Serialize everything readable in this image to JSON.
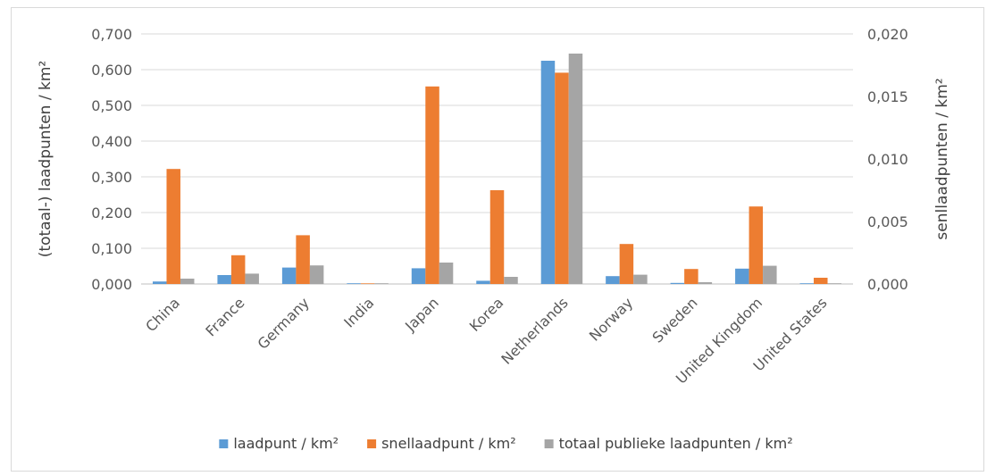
{
  "chart_data": {
    "type": "bar",
    "categories": [
      "China",
      "France",
      "Germany",
      "India",
      "Japan",
      "Korea",
      "Netherlands",
      "Norway",
      "Sweden",
      "United Kingdom",
      "United States"
    ],
    "series": [
      {
        "name": "laadpunt / km²",
        "axis": "left",
        "color": "#5b9bd5",
        "values": [
          0.007,
          0.025,
          0.046,
          0.002,
          0.044,
          0.009,
          0.625,
          0.022,
          0.003,
          0.043,
          0.002
        ]
      },
      {
        "name": "snellaadpunt / km²",
        "axis": "right",
        "color": "#ed7d31",
        "values": [
          0.0092,
          0.0023,
          0.0039,
          5e-05,
          0.0158,
          0.0075,
          0.0169,
          0.0032,
          0.0012,
          0.0062,
          0.0005
        ]
      },
      {
        "name": "totaal publieke laadpunten / km²",
        "axis": "left",
        "color": "#a5a5a5",
        "values": [
          0.015,
          0.029,
          0.052,
          0.002,
          0.06,
          0.02,
          0.645,
          0.026,
          0.005,
          0.051,
          0.002
        ]
      }
    ],
    "ylabel": "(totaal-) laadpunten / km²",
    "y2label": "senllaadpunten / km²",
    "ylim": [
      0,
      0.7
    ],
    "y2lim": [
      0,
      0.02
    ],
    "yticks": [
      "0,000",
      "0,100",
      "0,200",
      "0,300",
      "0,400",
      "0,500",
      "0,600",
      "0,700"
    ],
    "y2ticks": [
      "0,000",
      "0,005",
      "0,010",
      "0,015",
      "0,020"
    ],
    "grid": true,
    "legend_position": "bottom"
  }
}
